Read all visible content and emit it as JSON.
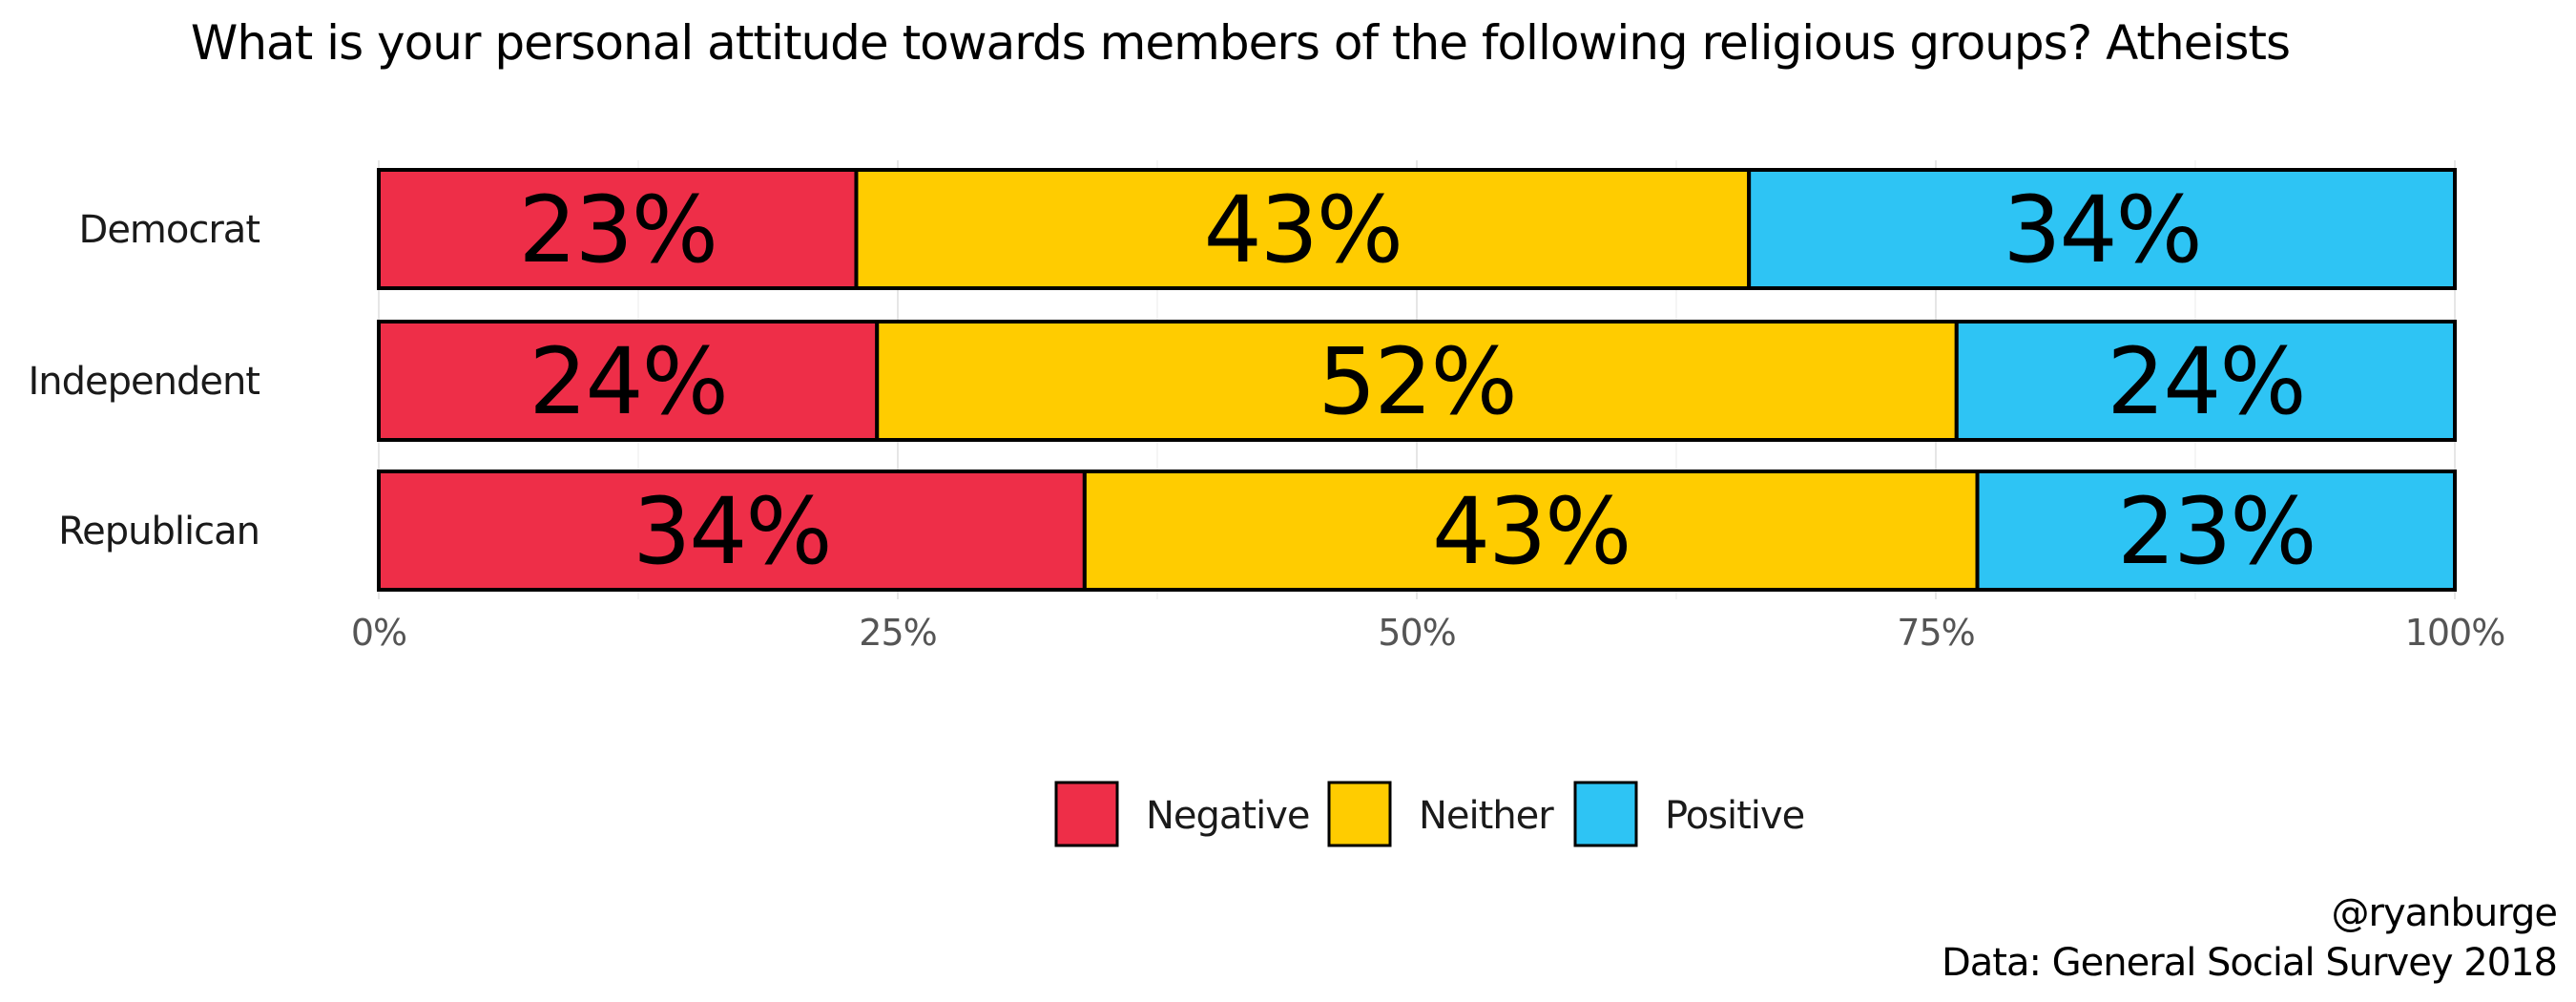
{
  "chart_data": {
    "type": "bar",
    "orientation": "horizontal",
    "stacked": true,
    "title": "What is your personal attitude towards members of the following religious groups? Atheists",
    "categories": [
      "Democrat",
      "Independent",
      "Republican"
    ],
    "series": [
      {
        "name": "Negative",
        "color": "#EE2E48",
        "values": [
          23,
          24,
          34
        ],
        "labels": [
          "23%",
          "24%",
          "34%"
        ]
      },
      {
        "name": "Neither",
        "color": "#FFCC00",
        "values": [
          43,
          52,
          43
        ],
        "labels": [
          "43%",
          "52%",
          "43%"
        ]
      },
      {
        "name": "Positive",
        "color": "#2EC4F4",
        "values": [
          34,
          24,
          23
        ],
        "labels": [
          "34%",
          "24%",
          "23%"
        ]
      }
    ],
    "xlim": [
      0,
      100
    ],
    "x_ticks": [
      "0%",
      "25%",
      "50%",
      "75%",
      "100%"
    ],
    "grid": true,
    "legend_position": "bottom"
  },
  "caption": {
    "handle": "@ryanburge",
    "source": "Data: General Social Survey 2018"
  }
}
